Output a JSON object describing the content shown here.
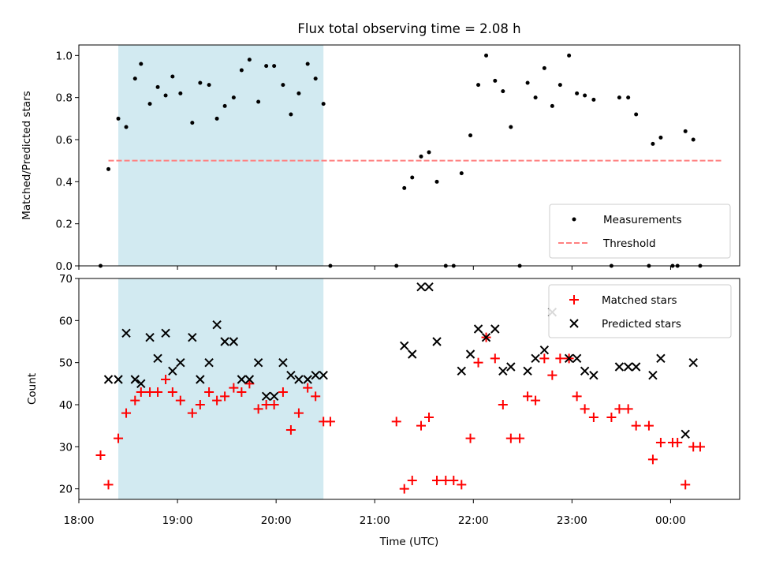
{
  "title": "Flux total observing time = 2.08 h",
  "colors": {
    "highlight": "#add8e6",
    "measurements": "#000000",
    "threshold": "#ff7f7f",
    "matched": "#ff0000",
    "predicted": "#000000"
  },
  "chart_data": [
    {
      "type": "scatter",
      "ylabel": "Matched/Predicted stars",
      "xlim": [
        18.0,
        24.7
      ],
      "ylim": [
        0.0,
        1.05
      ],
      "yticks": [
        "0.0",
        "0.2",
        "0.4",
        "0.6",
        "0.8",
        "1.0"
      ],
      "highlight_span": [
        18.4,
        20.48
      ],
      "legend": {
        "position": "lower-right",
        "entries": [
          "Measurements",
          "Threshold"
        ]
      },
      "threshold": {
        "name": "Threshold",
        "y": 0.5,
        "x": [
          18.3,
          24.52
        ]
      },
      "series": [
        {
          "name": "Measurements",
          "x": [
            18.22,
            18.3,
            18.4,
            18.48,
            18.57,
            18.63,
            18.72,
            18.8,
            18.88,
            18.95,
            19.03,
            19.15,
            19.23,
            19.32,
            19.4,
            19.48,
            19.57,
            19.65,
            19.73,
            19.82,
            19.9,
            19.98,
            20.07,
            20.15,
            20.23,
            20.32,
            20.4,
            20.48,
            20.55,
            21.22,
            21.3,
            21.38,
            21.47,
            21.55,
            21.63,
            21.72,
            21.8,
            21.88,
            21.97,
            22.05,
            22.13,
            22.22,
            22.3,
            22.38,
            22.47,
            22.55,
            22.63,
            22.72,
            22.8,
            22.88,
            22.97,
            23.05,
            23.13,
            23.22,
            23.4,
            23.48,
            23.57,
            23.65,
            23.78,
            23.82,
            23.9,
            24.02,
            24.07,
            24.15,
            24.23,
            24.3
          ],
          "y": [
            0.0,
            0.46,
            0.7,
            0.66,
            0.89,
            0.96,
            0.77,
            0.85,
            0.81,
            0.9,
            0.82,
            0.68,
            0.87,
            0.86,
            0.7,
            0.76,
            0.8,
            0.93,
            0.98,
            0.78,
            0.95,
            0.95,
            0.86,
            0.72,
            0.82,
            0.96,
            0.89,
            0.77,
            0.0,
            0.0,
            0.37,
            0.42,
            0.52,
            0.54,
            0.4,
            0.0,
            0.0,
            0.44,
            0.62,
            0.86,
            1.0,
            0.88,
            0.83,
            0.66,
            0.0,
            0.87,
            0.8,
            0.94,
            0.76,
            0.86,
            1.0,
            0.82,
            0.81,
            0.79,
            0.0,
            0.8,
            0.8,
            0.72,
            0.0,
            0.58,
            0.61,
            0.0,
            0.0,
            0.64,
            0.6,
            0.0
          ]
        }
      ]
    },
    {
      "type": "scatter",
      "xlabel": "Time (UTC)",
      "ylabel": "Count",
      "xlim": [
        18.0,
        24.7
      ],
      "ylim": [
        17.5,
        70.0
      ],
      "yticks": [
        "20",
        "30",
        "40",
        "50",
        "60",
        "70"
      ],
      "xticks": [
        "18:00",
        "19:00",
        "20:00",
        "21:00",
        "22:00",
        "23:00",
        "00:00"
      ],
      "highlight_span": [
        18.4,
        20.48
      ],
      "legend": {
        "position": "upper-right",
        "entries": [
          "Matched stars",
          "Predicted stars"
        ]
      },
      "series": [
        {
          "name": "Matched stars",
          "marker": "+",
          "x": [
            18.22,
            18.3,
            18.4,
            18.48,
            18.57,
            18.63,
            18.72,
            18.8,
            18.88,
            18.95,
            19.03,
            19.15,
            19.23,
            19.32,
            19.4,
            19.48,
            19.57,
            19.65,
            19.73,
            19.82,
            19.9,
            19.98,
            20.07,
            20.15,
            20.23,
            20.32,
            20.4,
            20.48,
            20.55,
            21.22,
            21.3,
            21.38,
            21.47,
            21.55,
            21.63,
            21.72,
            21.8,
            21.88,
            21.97,
            22.05,
            22.13,
            22.22,
            22.3,
            22.38,
            22.47,
            22.55,
            22.63,
            22.72,
            22.8,
            22.88,
            22.97,
            23.05,
            23.13,
            23.22,
            23.4,
            23.48,
            23.57,
            23.65,
            23.78,
            23.82,
            23.9,
            24.02,
            24.07,
            24.15,
            24.23,
            24.3
          ],
          "y": [
            28,
            21,
            32,
            38,
            41,
            43,
            43,
            43,
            46,
            43,
            41,
            38,
            40,
            43,
            41,
            42,
            44,
            43,
            45,
            39,
            40,
            40,
            43,
            34,
            38,
            44,
            42,
            36,
            36,
            36,
            20,
            22,
            35,
            37,
            22,
            22,
            22,
            21,
            32,
            50,
            56,
            51,
            40,
            32,
            32,
            42,
            41,
            51,
            47,
            51,
            51,
            42,
            39,
            37,
            37,
            39,
            39,
            35,
            35,
            27,
            31,
            31,
            31,
            21,
            30,
            30
          ]
        },
        {
          "name": "Predicted stars",
          "marker": "x",
          "x": [
            18.3,
            18.4,
            18.48,
            18.57,
            18.63,
            18.72,
            18.8,
            18.88,
            18.95,
            19.03,
            19.15,
            19.23,
            19.32,
            19.4,
            19.48,
            19.57,
            19.65,
            19.73,
            19.82,
            19.9,
            19.98,
            20.07,
            20.15,
            20.23,
            20.32,
            20.4,
            20.48,
            21.3,
            21.38,
            21.47,
            21.55,
            21.63,
            21.88,
            21.97,
            22.05,
            22.13,
            22.22,
            22.3,
            22.38,
            22.55,
            22.63,
            22.72,
            22.8,
            22.97,
            23.05,
            23.13,
            23.22,
            23.48,
            23.57,
            23.65,
            23.82,
            23.9,
            24.15,
            24.23
          ],
          "y": [
            46,
            46,
            57,
            46,
            45,
            56,
            51,
            57,
            48,
            50,
            56,
            46,
            50,
            59,
            55,
            55,
            46,
            46,
            50,
            42,
            42,
            50,
            47,
            46,
            46,
            47,
            47,
            54,
            52,
            68,
            68,
            55,
            48,
            52,
            58,
            56,
            58,
            48,
            49,
            48,
            51,
            53,
            62,
            51,
            51,
            48,
            47,
            49,
            49,
            49,
            47,
            51,
            33,
            50
          ]
        }
      ]
    }
  ]
}
